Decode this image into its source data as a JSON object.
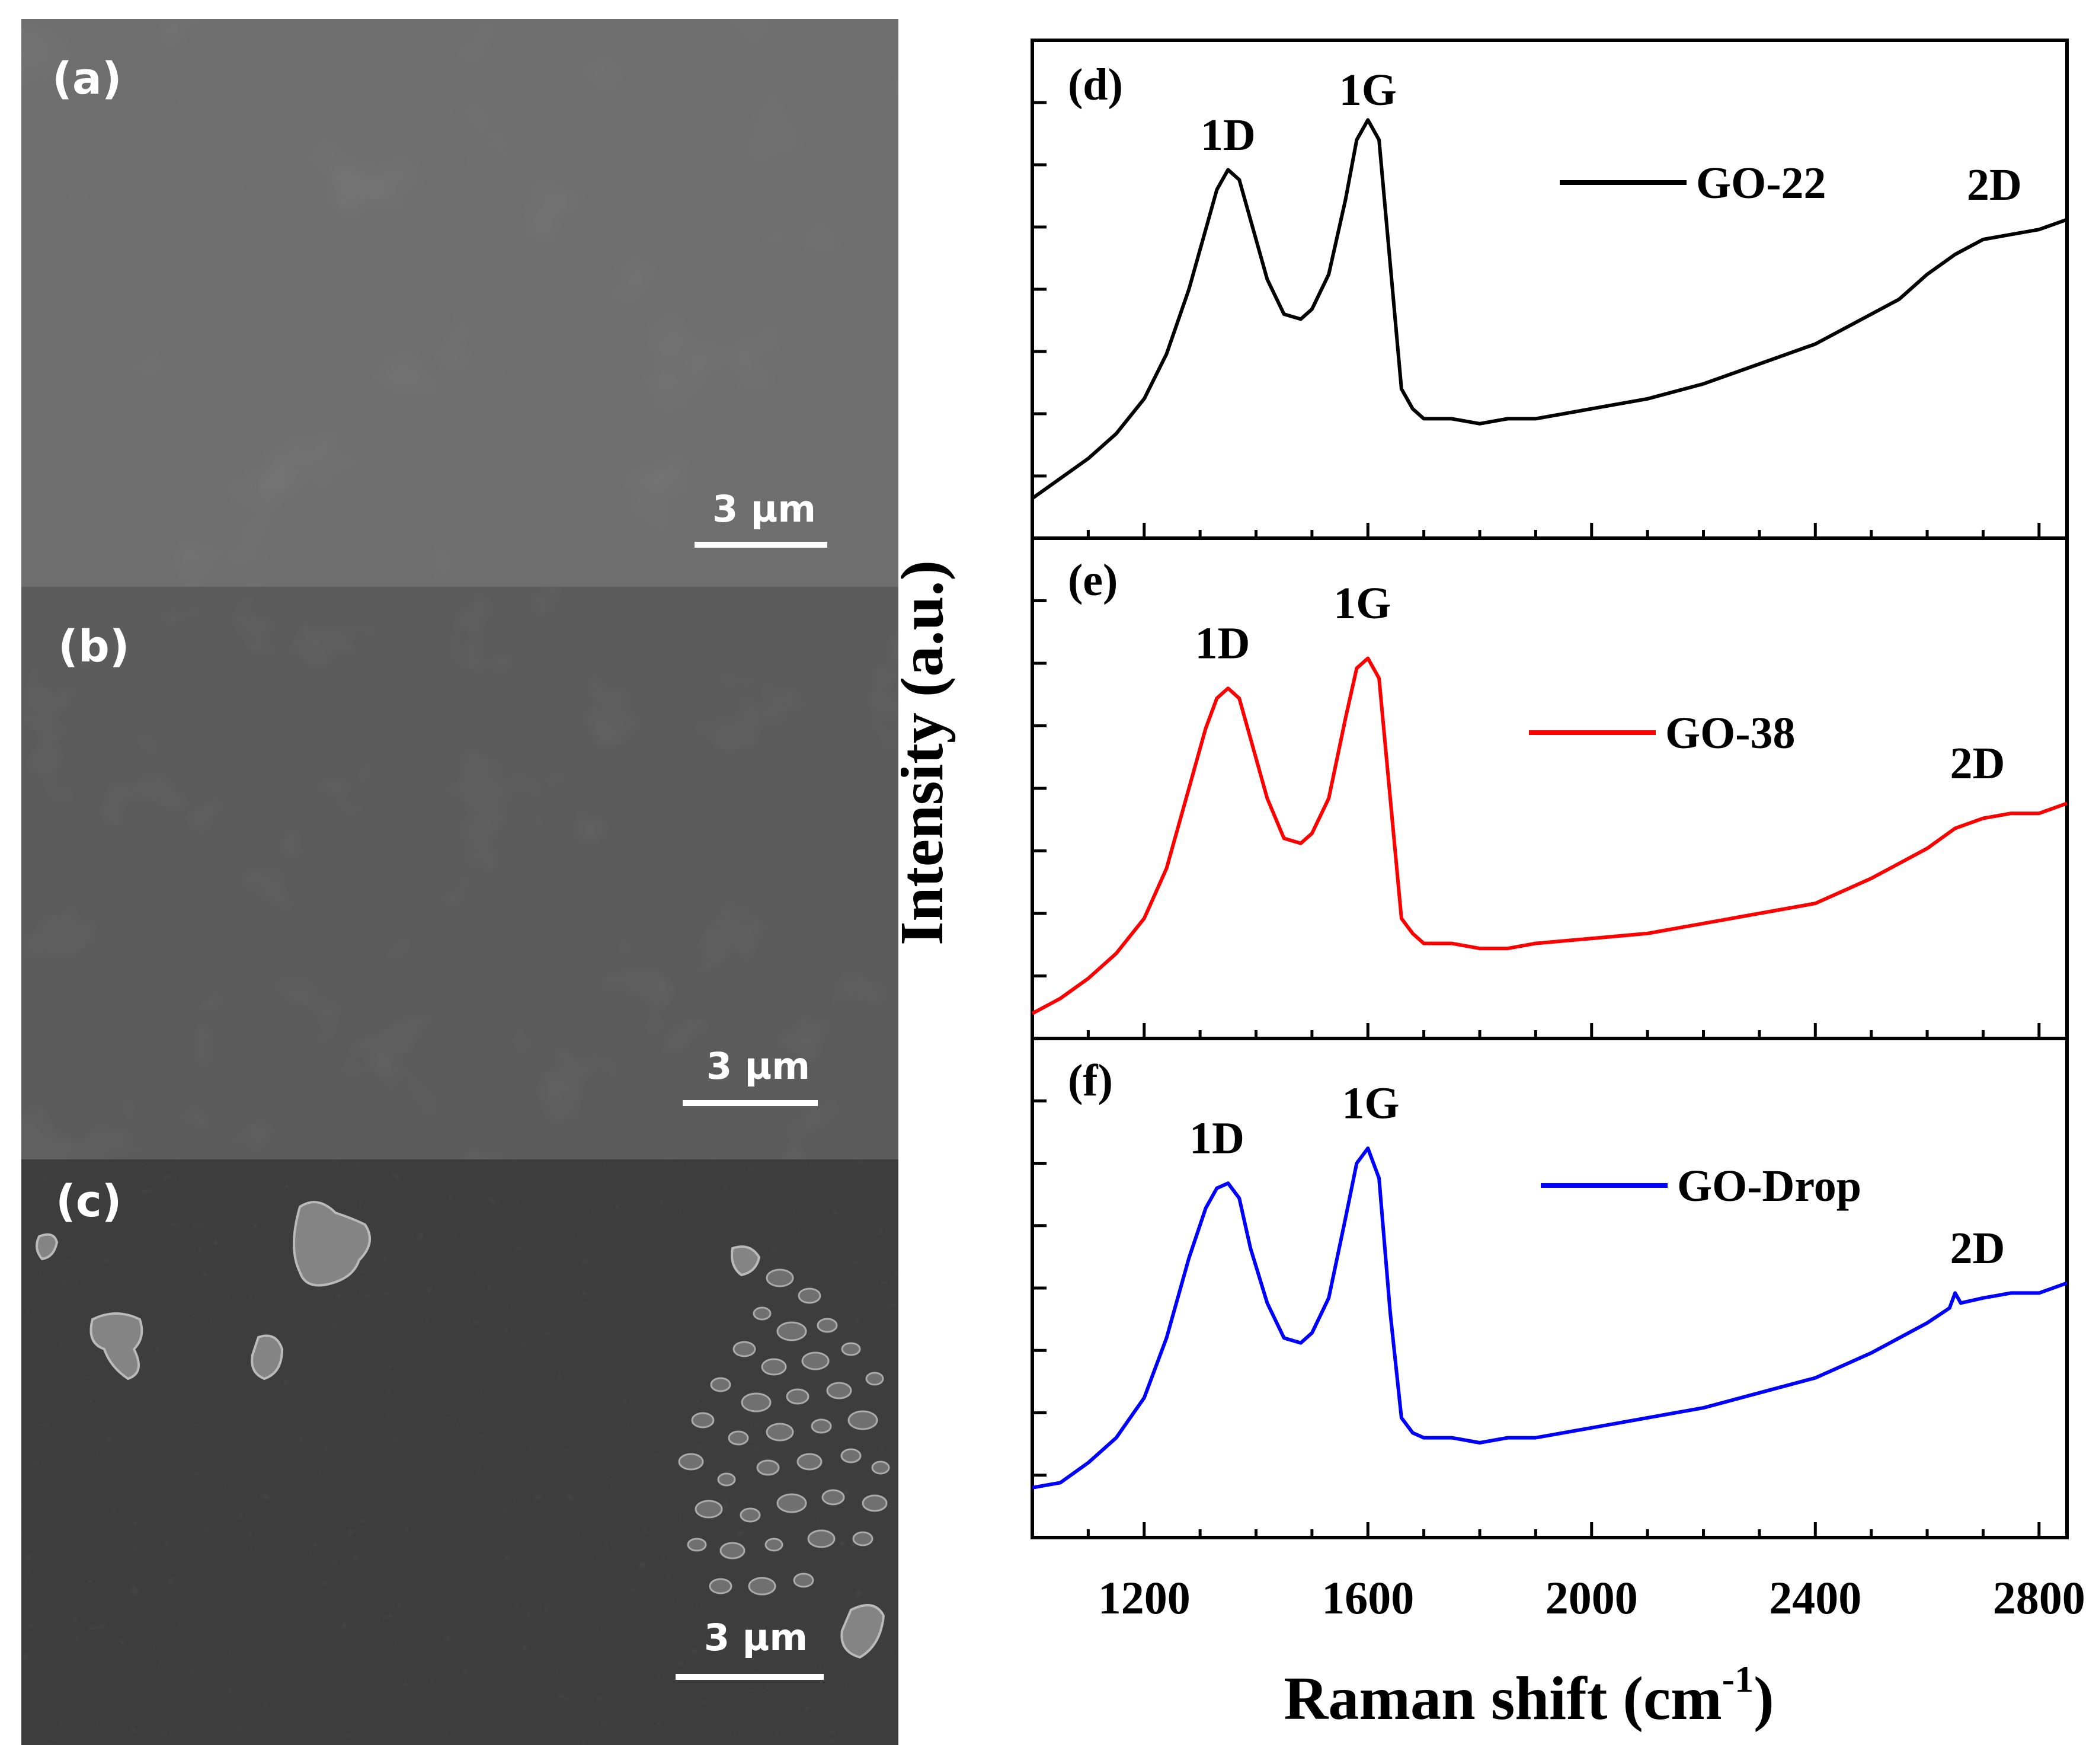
{
  "sem_panels": [
    {
      "label": "(a)",
      "scale_bar": "3 µm",
      "tone": "#6e6e6e"
    },
    {
      "label": "(b)",
      "scale_bar": "3 µm",
      "tone": "#5c5c5c"
    },
    {
      "label": "(c)",
      "scale_bar": "3 µm",
      "tone": "#3d3d3d"
    }
  ],
  "chart_data": {
    "type": "line",
    "x_unit": "Raman shift",
    "xlabel": "Raman shift (cm",
    "xlabel_superscript": "-1",
    "xlabel_suffix": ")",
    "ylabel": "Intensity (a.u.)",
    "xlim": [
      1000,
      2850
    ],
    "xticks": [
      1200,
      1600,
      2000,
      2400,
      2800
    ],
    "ylim": [
      0,
      1
    ],
    "panels": [
      {
        "label": "(d)",
        "legend": "GO-22",
        "color": "#000000",
        "peak_labels": [
          {
            "text": "1D",
            "x": 1350,
            "y": 0.78
          },
          {
            "text": "1G",
            "x": 1600,
            "y": 0.87
          },
          {
            "text": "2D",
            "x": 2720,
            "y": 0.68
          }
        ],
        "series": {
          "x": [
            1000,
            1050,
            1100,
            1150,
            1200,
            1240,
            1280,
            1310,
            1330,
            1350,
            1370,
            1390,
            1420,
            1450,
            1480,
            1500,
            1530,
            1560,
            1580,
            1600,
            1620,
            1640,
            1660,
            1680,
            1700,
            1750,
            1800,
            1850,
            1900,
            2000,
            2100,
            2200,
            2300,
            2400,
            2500,
            2550,
            2600,
            2650,
            2700,
            2750,
            2800,
            2850
          ],
          "y": [
            0.08,
            0.12,
            0.16,
            0.21,
            0.28,
            0.37,
            0.5,
            0.62,
            0.7,
            0.74,
            0.72,
            0.64,
            0.52,
            0.45,
            0.44,
            0.46,
            0.53,
            0.68,
            0.8,
            0.84,
            0.8,
            0.55,
            0.3,
            0.26,
            0.24,
            0.24,
            0.23,
            0.24,
            0.24,
            0.26,
            0.28,
            0.31,
            0.35,
            0.39,
            0.45,
            0.48,
            0.53,
            0.57,
            0.6,
            0.61,
            0.62,
            0.64
          ]
        }
      },
      {
        "label": "(e)",
        "legend": "GO-38",
        "color": "#ff0000",
        "peak_labels": [
          {
            "text": "1D",
            "x": 1340,
            "y": 0.76
          },
          {
            "text": "1G",
            "x": 1590,
            "y": 0.84
          },
          {
            "text": "2D",
            "x": 2690,
            "y": 0.52
          }
        ],
        "series": {
          "x": [
            1000,
            1050,
            1100,
            1150,
            1200,
            1240,
            1280,
            1310,
            1330,
            1350,
            1370,
            1390,
            1420,
            1450,
            1480,
            1500,
            1530,
            1560,
            1580,
            1600,
            1620,
            1640,
            1660,
            1680,
            1700,
            1750,
            1800,
            1850,
            1900,
            2000,
            2100,
            2200,
            2300,
            2400,
            2500,
            2550,
            2600,
            2650,
            2700,
            2750,
            2800,
            2850
          ],
          "y": [
            0.05,
            0.08,
            0.12,
            0.17,
            0.24,
            0.34,
            0.5,
            0.62,
            0.68,
            0.7,
            0.68,
            0.6,
            0.48,
            0.4,
            0.39,
            0.41,
            0.48,
            0.64,
            0.74,
            0.76,
            0.72,
            0.48,
            0.24,
            0.21,
            0.19,
            0.19,
            0.18,
            0.18,
            0.19,
            0.2,
            0.21,
            0.23,
            0.25,
            0.27,
            0.32,
            0.35,
            0.38,
            0.42,
            0.44,
            0.45,
            0.45,
            0.47
          ]
        }
      },
      {
        "label": "(f)",
        "legend": "GO-Drop",
        "color": "#0000ff",
        "peak_labels": [
          {
            "text": "1D",
            "x": 1330,
            "y": 0.77
          },
          {
            "text": "1G",
            "x": 1605,
            "y": 0.84
          },
          {
            "text": "2D",
            "x": 2690,
            "y": 0.55
          }
        ],
        "series": {
          "x": [
            1000,
            1050,
            1100,
            1150,
            1200,
            1240,
            1280,
            1310,
            1330,
            1350,
            1370,
            1390,
            1420,
            1450,
            1480,
            1500,
            1530,
            1560,
            1580,
            1600,
            1620,
            1640,
            1660,
            1680,
            1700,
            1750,
            1800,
            1850,
            1900,
            2000,
            2100,
            2200,
            2300,
            2400,
            2500,
            2550,
            2600,
            2640,
            2650,
            2660,
            2700,
            2750,
            2800,
            2850
          ],
          "y": [
            0.1,
            0.11,
            0.15,
            0.2,
            0.28,
            0.4,
            0.56,
            0.66,
            0.7,
            0.71,
            0.68,
            0.58,
            0.47,
            0.4,
            0.39,
            0.41,
            0.48,
            0.64,
            0.75,
            0.78,
            0.72,
            0.45,
            0.24,
            0.21,
            0.2,
            0.2,
            0.19,
            0.2,
            0.2,
            0.22,
            0.24,
            0.26,
            0.29,
            0.32,
            0.37,
            0.4,
            0.43,
            0.46,
            0.49,
            0.47,
            0.48,
            0.49,
            0.49,
            0.51
          ]
        }
      }
    ]
  }
}
